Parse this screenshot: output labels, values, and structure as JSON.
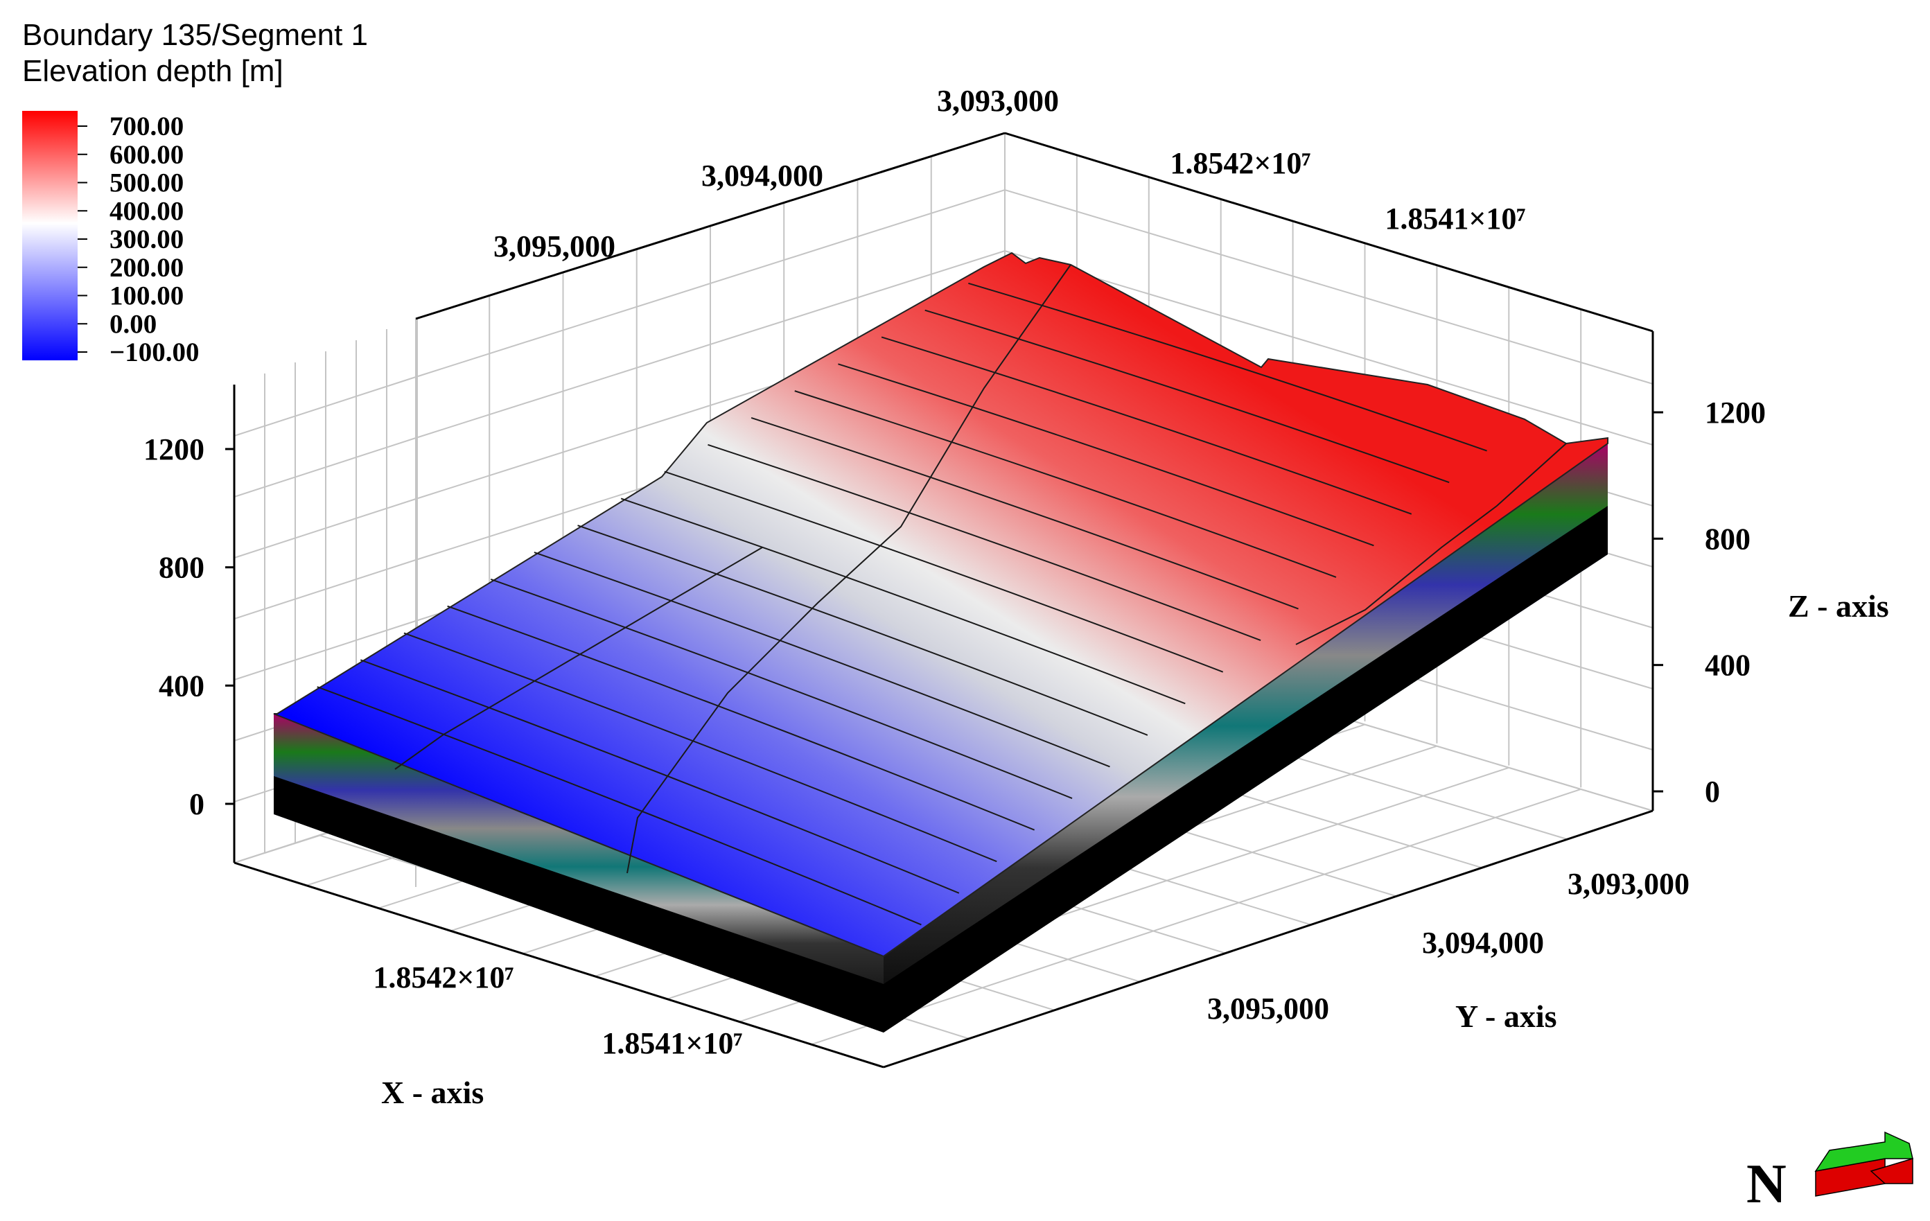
{
  "title": {
    "line1": "Boundary 135/Segment 1",
    "line2": "Elevation depth [m]"
  },
  "chart_data": {
    "type": "surface-3d",
    "colorbar": {
      "ticks": [
        "700.00",
        "600.00",
        "500.00",
        "400.00",
        "300.00",
        "200.00",
        "100.00",
        "0.00",
        "−100.00"
      ],
      "range": [
        -100,
        750
      ],
      "colors": [
        "#ff0000",
        "#ffffff",
        "#0000ff"
      ]
    },
    "axes": {
      "x": {
        "label": "X - axis",
        "ticks": [
          "1.8542×10⁷",
          "1.8541×10⁷"
        ]
      },
      "y": {
        "label": "Y - axis",
        "ticks": [
          "3,093,000",
          "3,094,000",
          "3,095,000"
        ]
      },
      "z": {
        "label": "Z - axis",
        "ticks": [
          "0",
          "400",
          "800",
          "1200"
        ],
        "range": [
          0,
          1200
        ]
      },
      "top_back_y_ticks": [
        "3,093,000",
        "3,094,000",
        "3,095,000"
      ],
      "top_back_x_ticks": [
        "1.8542×10⁷",
        "1.8541×10⁷"
      ]
    },
    "surface": {
      "top_elevation_range": [
        -100,
        750
      ],
      "layered_base": true
    },
    "north_arrow": {
      "label": "N",
      "colors": [
        "#00cc00",
        "#ee0000"
      ]
    }
  }
}
